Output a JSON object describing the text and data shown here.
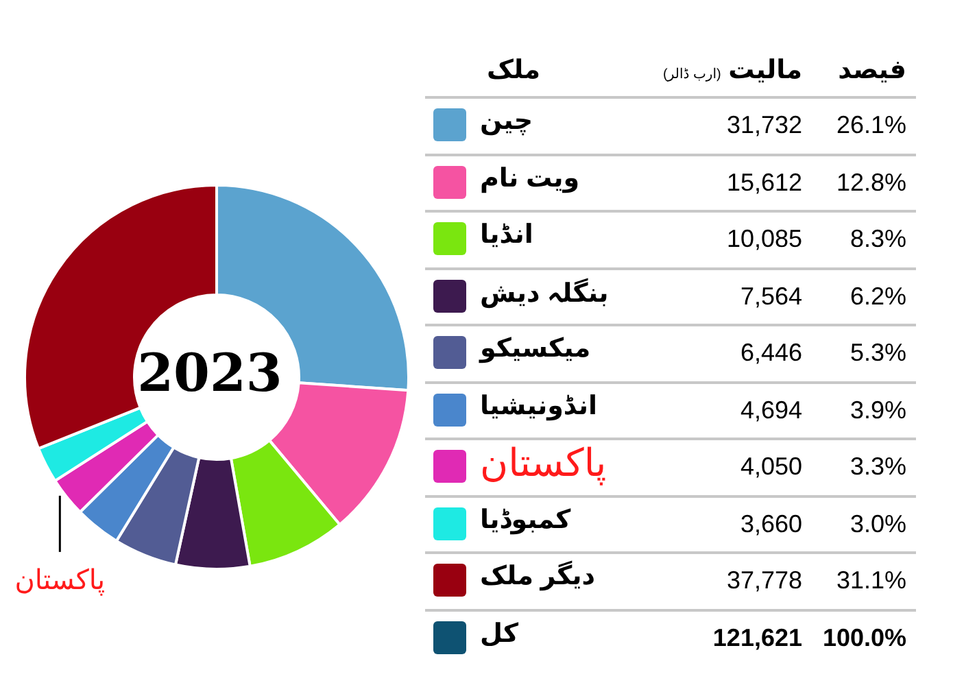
{
  "chart_data": {
    "type": "donut",
    "title": "2023",
    "categories": [
      "چین",
      "ویت نام",
      "انڈیا",
      "بنگلہ دیش",
      "میکسیکو",
      "انڈونیشیا",
      "پاکستان",
      "کمبوڈیا",
      "دیگر ملک"
    ],
    "values": [
      31732,
      15612,
      10085,
      7564,
      6446,
      4694,
      4050,
      3660,
      37778
    ],
    "colors": [
      "#5ba3cf",
      "#f553a2",
      "#7ae60f",
      "#3d1a4f",
      "#525c94",
      "#4a86cc",
      "#e02ab4",
      "#1eeae3",
      "#990010"
    ],
    "value_labels": [
      "31,732",
      "15,612",
      "10,085",
      "7,564",
      "6,446",
      "4,694",
      "4,050",
      "3,660",
      "37,778"
    ],
    "totals": [
      "121,621"
    ],
    "annotations": [
      "ملک",
      "مالیت",
      "(ارب ڈالر)",
      "فیصد",
      "کل",
      "100.0%",
      "26.1%",
      "12.8%",
      "8.3%",
      "6.2%",
      "5.3%",
      "3.9%",
      "3.3%",
      "3.0%",
      "31.1%",
      {
        "text": "پاکستان",
        "x": "پاکستان"
      }
    ],
    "legend": "right"
  }
}
